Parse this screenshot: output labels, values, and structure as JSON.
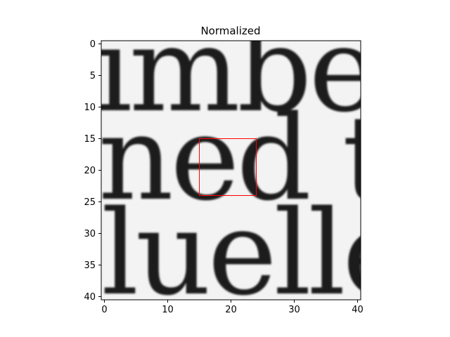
{
  "chart_data": {
    "type": "heatmap",
    "title": "Normalized",
    "xlabel": "",
    "ylabel": "",
    "colormap": "gray",
    "image_content_text": [
      "imbe",
      "ned t",
      "luelle"
    ],
    "grid_size": [
      41,
      41
    ],
    "xlim": [
      -0.5,
      40.5
    ],
    "ylim": [
      40.5,
      -0.5
    ],
    "x_ticks": [
      0,
      10,
      20,
      30,
      40
    ],
    "y_ticks": [
      0,
      5,
      10,
      15,
      20,
      25,
      30,
      35,
      40
    ],
    "grid": false,
    "annotation": {
      "type": "rectangle",
      "x0": 15,
      "y0": 15,
      "x1": 24,
      "y1": 24,
      "color": "#ff0000"
    }
  }
}
